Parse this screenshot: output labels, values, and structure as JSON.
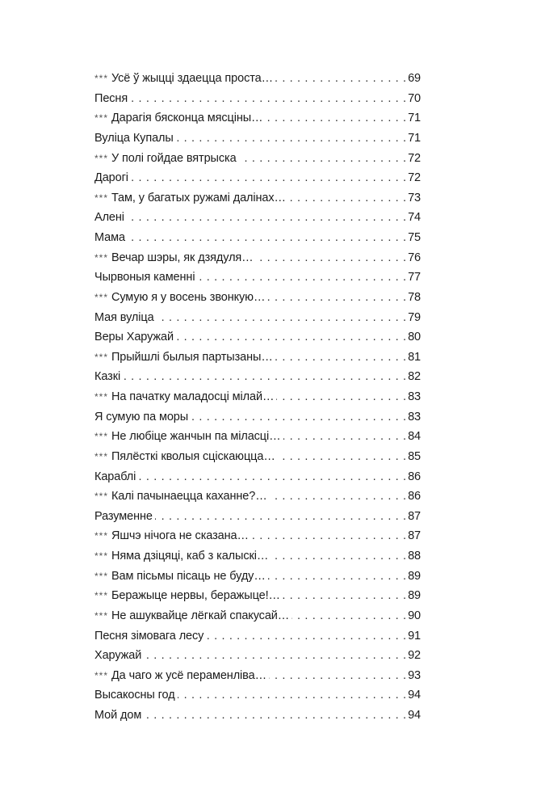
{
  "toc": [
    {
      "prefix": "***",
      "title": "Усё ў жыцці здаецца проста…",
      "page": "69"
    },
    {
      "prefix": "",
      "title": "Песня",
      "page": "70"
    },
    {
      "prefix": "***",
      "title": "Дарагія бясконца мясціны…",
      "page": "71"
    },
    {
      "prefix": "",
      "title": "Вуліца Купалы",
      "page": "71"
    },
    {
      "prefix": "***",
      "title": "У полі гойдае вятрыска",
      "page": "72"
    },
    {
      "prefix": "",
      "title": "Дарогі",
      "page": "72"
    },
    {
      "prefix": "***",
      "title": "Там, у багатых ружамі далінах…",
      "page": "73"
    },
    {
      "prefix": "",
      "title": "Алені",
      "page": "74"
    },
    {
      "prefix": "",
      "title": "Мама",
      "page": "75"
    },
    {
      "prefix": "***",
      "title": "Вечар шэры, як дзядуля…",
      "page": "76"
    },
    {
      "prefix": "",
      "title": "Чырвоныя каменні",
      "page": "77"
    },
    {
      "prefix": "***",
      "title": "Сумую я у восень звонкую…",
      "page": "78"
    },
    {
      "prefix": "",
      "title": "Мая вуліца",
      "page": "79"
    },
    {
      "prefix": "",
      "title": "Веры Харужай",
      "page": "80"
    },
    {
      "prefix": "***",
      "title": "Прыйшлі былыя партызаны…",
      "page": "81"
    },
    {
      "prefix": "",
      "title": "Казкі",
      "page": "82"
    },
    {
      "prefix": "***",
      "title": "На пачатку маладосці мілай…",
      "page": "83"
    },
    {
      "prefix": "",
      "title": "Я сумую па моры",
      "page": "83"
    },
    {
      "prefix": "***",
      "title": "Не любіце жанчын па міласці…",
      "page": "84"
    },
    {
      "prefix": "***",
      "title": "Пялёсткі кволыя сціскаюцца…",
      "page": "85"
    },
    {
      "prefix": "",
      "title": "Караблі",
      "page": "86"
    },
    {
      "prefix": "***",
      "title": "Калі пачынаецца каханне?…",
      "page": "86"
    },
    {
      "prefix": "",
      "title": "Разуменне",
      "page": "87"
    },
    {
      "prefix": "***",
      "title": "Яшчэ нічога не сказана…",
      "page": "87"
    },
    {
      "prefix": "***",
      "title": "Няма дзіцяці, каб з калыскі…",
      "page": "88"
    },
    {
      "prefix": "***",
      "title": "Вам пісьмы пісаць не буду…",
      "page": "89"
    },
    {
      "prefix": "***",
      "title": "Беражыце нервы, беражыце!…",
      "page": "89"
    },
    {
      "prefix": "***",
      "title": "Не ашуквайце лёгкай спакусай…",
      "page": "90"
    },
    {
      "prefix": "",
      "title": "Песня зімовага лесу",
      "page": "91"
    },
    {
      "prefix": "",
      "title": "Харужай",
      "page": "92"
    },
    {
      "prefix": "***",
      "title": "Да чаго ж усё пераменліва…",
      "page": "93"
    },
    {
      "prefix": "",
      "title": "Высакосны год",
      "page": "94"
    },
    {
      "prefix": "",
      "title": "Мой дом",
      "page": "94"
    }
  ]
}
